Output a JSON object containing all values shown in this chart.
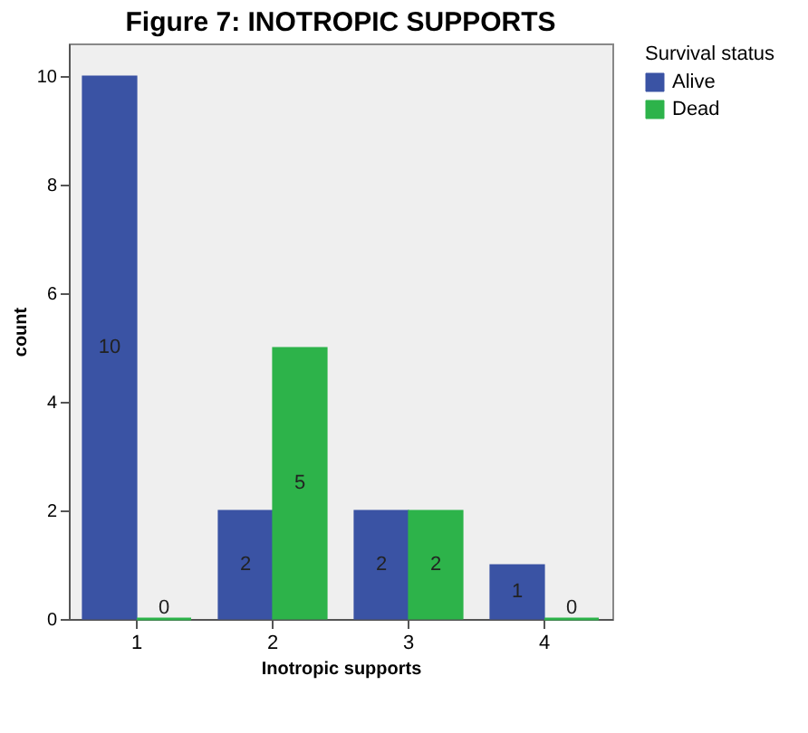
{
  "chart_data": {
    "type": "bar",
    "title": "Figure 7: INOTROPIC SUPPORTS",
    "xlabel": "Inotropic supports",
    "ylabel": "count",
    "legend_title": "Survival status",
    "categories": [
      "1",
      "2",
      "3",
      "4"
    ],
    "series": [
      {
        "name": "Alive",
        "color": "#3a53a4",
        "values": [
          10,
          2,
          2,
          1
        ]
      },
      {
        "name": "Dead",
        "color": "#2db34a",
        "values": [
          0,
          5,
          2,
          0
        ]
      }
    ],
    "ylim": [
      0,
      10.6
    ],
    "yticks": [
      0,
      2,
      4,
      6,
      8,
      10
    ],
    "grid": false,
    "legend": "top right",
    "data_labels": true
  }
}
